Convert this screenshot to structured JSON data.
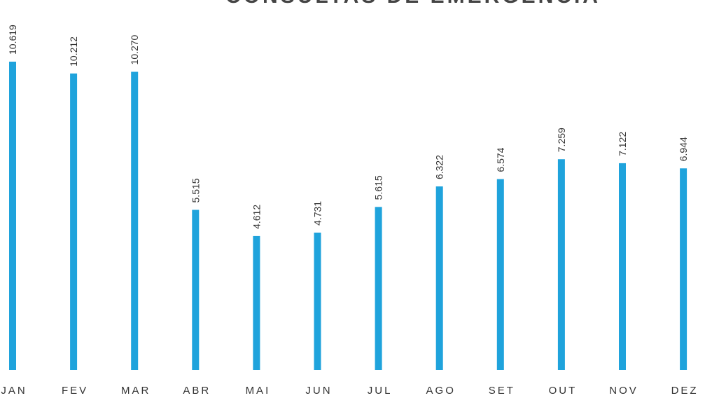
{
  "chart_data": {
    "type": "bar",
    "title": "CONSULTAS DE EMERGÊNCIA",
    "categories": [
      "JAN",
      "FEV",
      "MAR",
      "ABR",
      "MAI",
      "JUN",
      "JUL",
      "AGO",
      "SET",
      "OUT",
      "NOV",
      "DEZ"
    ],
    "values": [
      10619,
      10212,
      10270,
      5515,
      4612,
      4731,
      5615,
      6322,
      6574,
      7259,
      7122,
      6944
    ],
    "value_labels": [
      "10.619",
      "10.212",
      "10.270",
      "5.515",
      "4.612",
      "4.731",
      "5.615",
      "6.322",
      "6.574",
      "7.259",
      "7.122",
      "6.944"
    ],
    "color": "#1fa3dc"
  }
}
